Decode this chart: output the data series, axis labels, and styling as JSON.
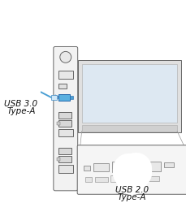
{
  "usb30_label_line1": "USB 3.0",
  "usb30_label_line2": "Type-A",
  "usb20_label_line1": "USB 2.0",
  "usb20_label_line2": "Type-A",
  "usb30_icon_color": "#3a8fc7",
  "usb20_icon_color": "#7b3fa0",
  "bg_color": "#ffffff",
  "label_fontsize": 7.5,
  "outline_color": "#666666",
  "panel_fc": "#f2f2f2",
  "monitor_fc": "#e0e0e0",
  "screen_fc": "#dde8f2",
  "zoom_fc": "#f5f5f5",
  "cable30_color": "#4a9fd4",
  "cable20_color": "#b090d0"
}
